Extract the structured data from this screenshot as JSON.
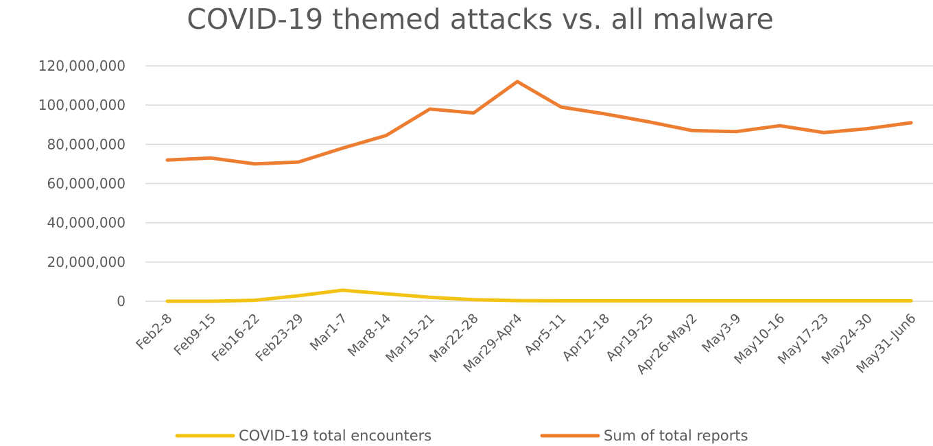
{
  "chart_data": {
    "type": "line",
    "title": "COVID-19 themed attacks vs. all malware",
    "xlabel": "",
    "ylabel": "",
    "ylim": [
      0,
      120000000
    ],
    "yticks": [
      "0",
      "20,000,000",
      "40,000,000",
      "60,000,000",
      "80,000,000",
      "100,000,000",
      "120,000,000"
    ],
    "ytick_values": [
      0,
      20000000,
      40000000,
      60000000,
      80000000,
      100000000,
      120000000
    ],
    "grid": true,
    "legend_position": "bottom",
    "categories": [
      "Feb2-8",
      "Feb9-15",
      "Feb16-22",
      "Feb23-29",
      "Mar1-7",
      "Mar8-14",
      "Mar15-21",
      "Mar22-28",
      "Mar29-Apr4",
      "Apr5-11",
      "Apr12-18",
      "Apr19-25",
      "Apr26-May2",
      "May3-9",
      "May10-16",
      "May17-23",
      "May24-30",
      "May31-Jun6"
    ],
    "series": [
      {
        "name": "COVID-19 total encounters",
        "color": "#F2C314",
        "values": [
          0,
          0,
          500000,
          2800000,
          5600000,
          3800000,
          2000000,
          800000,
          300000,
          200000,
          200000,
          200000,
          200000,
          200000,
          200000,
          200000,
          200000,
          200000
        ]
      },
      {
        "name": "Sum of total reports",
        "color": "#ED7D31",
        "values": [
          72000000,
          73000000,
          70000000,
          71000000,
          78000000,
          84500000,
          98000000,
          96000000,
          112000000,
          99000000,
          95500000,
          91500000,
          87000000,
          86500000,
          89500000,
          86000000,
          88000000,
          91000000
        ]
      }
    ]
  }
}
